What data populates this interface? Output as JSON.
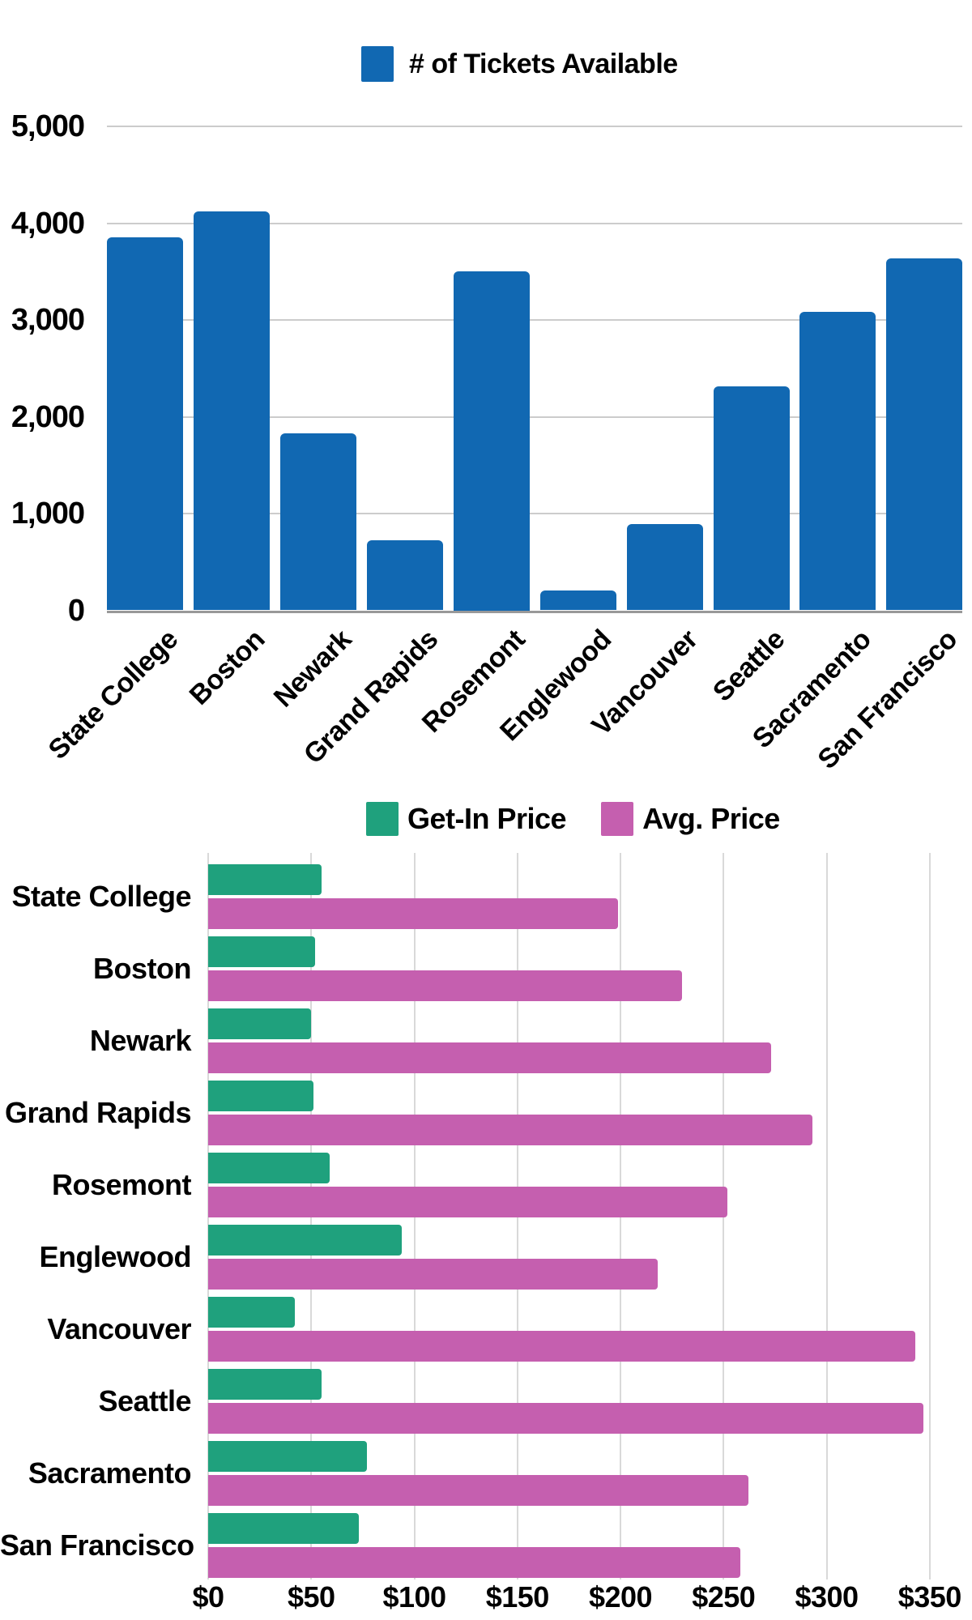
{
  "chart_data": [
    {
      "type": "bar",
      "orientation": "vertical",
      "legend_position": "top",
      "grid": true,
      "categories": [
        "State College",
        "Boston",
        "Newark",
        "Grand Rapids",
        "Rosemont",
        "Englewood",
        "Vancouver",
        "Seattle",
        "Sacramento",
        "San Francisco"
      ],
      "series": [
        {
          "name": "# of Tickets Available",
          "color": "#1168B2",
          "values": [
            3850,
            4120,
            1830,
            725,
            3500,
            205,
            890,
            2310,
            3080,
            3640
          ]
        }
      ],
      "ylim": [
        0,
        5000
      ],
      "y_tick_interval": 1000,
      "y_tick_labels": [
        "0",
        "1,000",
        "2,000",
        "3,000",
        "4,000",
        "5,000"
      ],
      "xlabel": "",
      "ylabel": ""
    },
    {
      "type": "bar",
      "orientation": "horizontal",
      "legend_position": "top",
      "grid": true,
      "categories": [
        "State College",
        "Boston",
        "Newark",
        "Grand Rapids",
        "Rosemont",
        "Englewood",
        "Vancouver",
        "Seattle",
        "Sacramento",
        "San Francisco"
      ],
      "series": [
        {
          "name": "Get-In Price",
          "color": "#1FA17D",
          "values": [
            55,
            52,
            50,
            51,
            59,
            94,
            42,
            55,
            77,
            73
          ]
        },
        {
          "name": "Avg. Price",
          "color": "#C55FAF",
          "values": [
            199,
            230,
            273,
            293,
            252,
            218,
            343,
            347,
            262,
            258
          ]
        }
      ],
      "xlim": [
        0,
        350
      ],
      "x_tick_interval": 50,
      "x_tick_labels": [
        "$0",
        "$50",
        "$100",
        "$150",
        "$200",
        "$250",
        "$300",
        "$350"
      ],
      "xlabel": "",
      "ylabel": ""
    }
  ]
}
